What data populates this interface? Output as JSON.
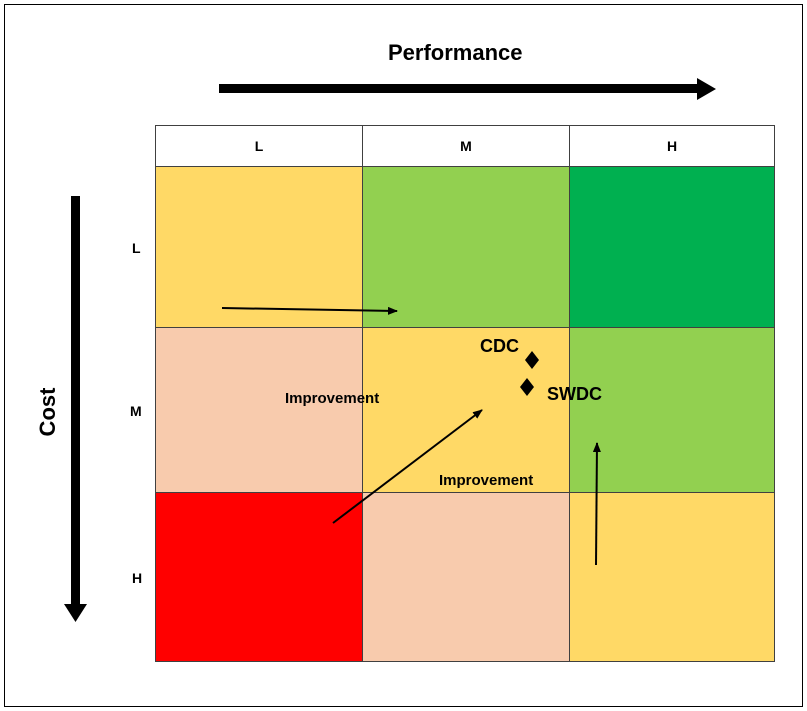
{
  "x_axis": {
    "label": "Performance"
  },
  "y_axis": {
    "label": "Cost"
  },
  "columns": [
    "L",
    "M",
    "H"
  ],
  "rows": [
    "L",
    "M",
    "H"
  ],
  "grid_colors": [
    [
      "#ffd966",
      "#92d050",
      "#00b050"
    ],
    [
      "#f8cbad",
      "#ffd966",
      "#92d050"
    ],
    [
      "#ff0000",
      "#f8cbad",
      "#ffd966"
    ]
  ],
  "annotations": {
    "improvement_left": "Improvement",
    "improvement_bottom": "Improvement",
    "point_cdc": "CDC",
    "point_swdc": "SWDC"
  }
}
